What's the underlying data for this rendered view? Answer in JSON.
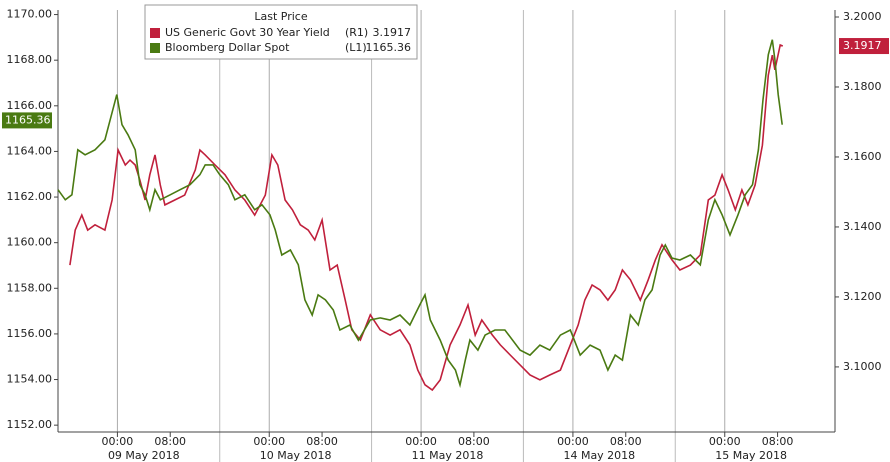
{
  "chart_data": {
    "type": "line",
    "legend": {
      "title": "Last Price"
    },
    "series": [
      {
        "name": "US Generic Govt 30 Year Yield",
        "axis_label": "(R1)",
        "last_value": 3.1917,
        "color": "#c0203c",
        "axis": "y2",
        "x": [
          1.8,
          2.6,
          3.6,
          4.5,
          5.6,
          7.1,
          8.2,
          9.1,
          10.2,
          10.9,
          11.7,
          12.4,
          13.2,
          13.9,
          14.7,
          15.5,
          16.2,
          17.7,
          19.2,
          20.8,
          21.5,
          22.3,
          23.8,
          25.3,
          26.8,
          28.3,
          29.8,
          31.4,
          32.4,
          33.3,
          34.4,
          35.5,
          36.7,
          37.9,
          38.9,
          40.0,
          41.2,
          42.3,
          43.5,
          44.5,
          45.8,
          47.3,
          48.8,
          50.3,
          51.8,
          53.3,
          54.5,
          55.6,
          56.7,
          57.9,
          59.4,
          60.9,
          62.1,
          63.2,
          64.2,
          65.8,
          67.0,
          68.5,
          71.5,
          73.0,
          74.5,
          76.1,
          77.6,
          78.8,
          79.8,
          80.9,
          82.1,
          83.3,
          84.4,
          85.5,
          86.7,
          88.2,
          89.4,
          90.5,
          91.5,
          93.0,
          94.2,
          95.8,
          97.3,
          98.5,
          99.5,
          100.6,
          101.5,
          102.6,
          103.6,
          104.5,
          105.6,
          106.7,
          107.6,
          108.2,
          108.6,
          109.4,
          109.8
        ],
        "values": [
          3.1291,
          3.1391,
          3.1434,
          3.1391,
          3.1406,
          3.1391,
          3.1477,
          3.162,
          3.1577,
          3.1591,
          3.1577,
          3.1534,
          3.1477,
          3.1549,
          3.1606,
          3.152,
          3.1463,
          3.1477,
          3.1491,
          3.1563,
          3.162,
          3.1606,
          3.1577,
          3.1549,
          3.1506,
          3.1477,
          3.1434,
          3.1491,
          3.1606,
          3.1577,
          3.1477,
          3.1449,
          3.1406,
          3.1391,
          3.1363,
          3.142,
          3.1277,
          3.1291,
          3.1191,
          3.1106,
          3.1077,
          3.1149,
          3.1106,
          3.1091,
          3.1106,
          3.1063,
          3.0991,
          3.0949,
          3.0934,
          3.0963,
          3.1063,
          3.112,
          3.1177,
          3.1091,
          3.1134,
          3.1091,
          3.1063,
          3.1034,
          3.0977,
          3.0963,
          3.0977,
          3.0991,
          3.1063,
          3.112,
          3.1191,
          3.1234,
          3.122,
          3.1191,
          3.122,
          3.1277,
          3.1249,
          3.1191,
          3.1249,
          3.1306,
          3.1349,
          3.1306,
          3.1277,
          3.1291,
          3.132,
          3.1477,
          3.1491,
          3.1549,
          3.1506,
          3.1449,
          3.1506,
          3.1463,
          3.152,
          3.1634,
          3.1834,
          3.1891,
          3.1849,
          3.192,
          3.1917
        ]
      },
      {
        "name": "Bloomberg Dollar Spot",
        "axis_label": "(L1)",
        "last_value": 1165.36,
        "color": "#4a7a12",
        "axis": "y",
        "x": [
          0,
          1.1,
          2.1,
          3.0,
          4.1,
          5.6,
          7.1,
          7.9,
          8.9,
          9.7,
          10.6,
          11.7,
          12.4,
          13.2,
          13.9,
          14.7,
          15.5,
          17.0,
          18.5,
          20.0,
          21.5,
          22.3,
          23.5,
          24.5,
          25.8,
          26.8,
          28.3,
          29.8,
          30.9,
          32.1,
          32.9,
          33.9,
          35.2,
          36.4,
          37.4,
          38.5,
          39.4,
          40.5,
          41.7,
          42.7,
          44.2,
          45.5,
          47.3,
          48.8,
          50.3,
          51.8,
          53.3,
          54.8,
          55.6,
          56.4,
          57.9,
          59.1,
          60.2,
          60.9,
          61.7,
          62.4,
          63.6,
          64.7,
          66.2,
          67.7,
          70.0,
          71.5,
          73.0,
          74.5,
          76.1,
          77.6,
          79.1,
          80.6,
          82.1,
          83.3,
          84.4,
          85.5,
          86.7,
          87.9,
          88.9,
          90.0,
          91.2,
          92.0,
          93.0,
          94.2,
          95.8,
          97.3,
          98.5,
          99.5,
          100.6,
          101.8,
          103.0,
          104.1,
          105.2,
          106.1,
          106.8,
          107.6,
          108.2,
          108.6,
          109.1,
          109.7
        ],
        "values": [
          1162.32,
          1161.88,
          1162.1,
          1164.07,
          1163.85,
          1164.07,
          1164.51,
          1165.39,
          1166.49,
          1165.17,
          1164.73,
          1164.07,
          1162.54,
          1162.1,
          1161.44,
          1162.32,
          1161.88,
          1162.1,
          1162.32,
          1162.54,
          1162.98,
          1163.41,
          1163.41,
          1162.98,
          1162.54,
          1161.88,
          1162.1,
          1161.44,
          1161.66,
          1161.22,
          1160.56,
          1159.46,
          1159.68,
          1159.03,
          1157.49,
          1156.83,
          1157.71,
          1157.49,
          1157.05,
          1156.17,
          1156.39,
          1155.73,
          1156.61,
          1156.7,
          1156.61,
          1156.83,
          1156.39,
          1157.27,
          1157.71,
          1156.61,
          1155.73,
          1154.85,
          1154.42,
          1153.76,
          1154.85,
          1155.73,
          1155.29,
          1155.95,
          1156.17,
          1156.17,
          1155.29,
          1155.07,
          1155.51,
          1155.29,
          1155.95,
          1156.17,
          1155.07,
          1155.51,
          1155.29,
          1154.42,
          1155.07,
          1154.85,
          1156.83,
          1156.39,
          1157.49,
          1157.93,
          1159.46,
          1159.9,
          1159.33,
          1159.24,
          1159.46,
          1159.03,
          1161.0,
          1161.88,
          1161.22,
          1160.34,
          1161.22,
          1162.1,
          1162.54,
          1164.07,
          1166.27,
          1168.24,
          1168.9,
          1168.02,
          1166.49,
          1165.17
        ]
      }
    ],
    "xlim": [
      0,
      117.7
    ],
    "xticks": [
      {
        "value": 9,
        "label": "00:00"
      },
      {
        "value": 17,
        "label": "08:00"
      },
      {
        "value": 32,
        "label": "00:00"
      },
      {
        "value": 40,
        "label": "08:00"
      },
      {
        "value": 55,
        "label": "00:00"
      },
      {
        "value": 63,
        "label": "08:00"
      },
      {
        "value": 78,
        "label": "00:00"
      },
      {
        "value": 86,
        "label": "08:00"
      },
      {
        "value": 101,
        "label": "00:00"
      },
      {
        "value": 109,
        "label": "08:00"
      }
    ],
    "day_labels": [
      "09 May 2018",
      "10 May 2018",
      "11 May 2018",
      "14 May 2018",
      "15 May 2018"
    ],
    "ylim": [
      1151.7,
      1170.2
    ],
    "yticks": [
      {
        "value": 1152,
        "label": "1152.00"
      },
      {
        "value": 1154,
        "label": "1154.00"
      },
      {
        "value": 1156,
        "label": "1156.00"
      },
      {
        "value": 1158,
        "label": "1158.00"
      },
      {
        "value": 1160,
        "label": "1160.00"
      },
      {
        "value": 1162,
        "label": "1162.00"
      },
      {
        "value": 1164,
        "label": "1164.00"
      },
      {
        "value": 1166,
        "label": "1166.00"
      },
      {
        "value": 1168,
        "label": "1168.00"
      },
      {
        "value": 1170,
        "label": "1170.00"
      }
    ],
    "y2lim": [
      3.0814,
      3.202
    ],
    "y2ticks": [
      {
        "value": 3.1,
        "label": "3.1000"
      },
      {
        "value": 3.12,
        "label": "3.1200"
      },
      {
        "value": 3.14,
        "label": "3.1400"
      },
      {
        "value": 3.16,
        "label": "3.1600"
      },
      {
        "value": 3.18,
        "label": "3.1800"
      },
      {
        "value": 3.2,
        "label": "3.2000"
      }
    ]
  }
}
